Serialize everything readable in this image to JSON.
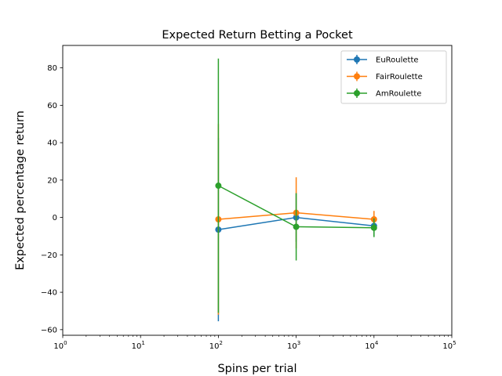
{
  "chart_data": {
    "type": "line",
    "title": "Expected Return Betting a Pocket",
    "xlabel": "Spins per trial",
    "ylabel": "Expected percentage return",
    "xscale": "log",
    "xlim": [
      1,
      100000
    ],
    "ylim": [
      -63,
      92
    ],
    "grid": false,
    "legend_position": "top-right",
    "x": [
      100,
      1000,
      10000
    ],
    "x_ticks": [
      1,
      10,
      100,
      1000,
      10000,
      100000
    ],
    "x_tick_labels": [
      {
        "base": "10",
        "exp": "0"
      },
      {
        "base": "10",
        "exp": "1"
      },
      {
        "base": "10",
        "exp": "2"
      },
      {
        "base": "10",
        "exp": "3"
      },
      {
        "base": "10",
        "exp": "4"
      },
      {
        "base": "10",
        "exp": "5"
      }
    ],
    "y_ticks": [
      -60,
      -40,
      -20,
      0,
      20,
      40,
      60,
      80
    ],
    "y_tick_labels": [
      "−60",
      "−40",
      "−20",
      "0",
      "20",
      "40",
      "60",
      "80"
    ],
    "series": [
      {
        "name": "EuRoulette",
        "color": "#1f77b4",
        "values": [
          -6.5,
          0,
          -4.5
        ],
        "errors": [
          49,
          13,
          5.5
        ]
      },
      {
        "name": "FairRoulette",
        "color": "#ff7f0e",
        "values": [
          -1,
          2.5,
          -1
        ],
        "errors": [
          51,
          19,
          4.5
        ]
      },
      {
        "name": "AmRoulette",
        "color": "#2ca02c",
        "values": [
          17,
          -5,
          -5.5
        ],
        "errors": [
          68,
          18,
          5
        ]
      }
    ]
  }
}
